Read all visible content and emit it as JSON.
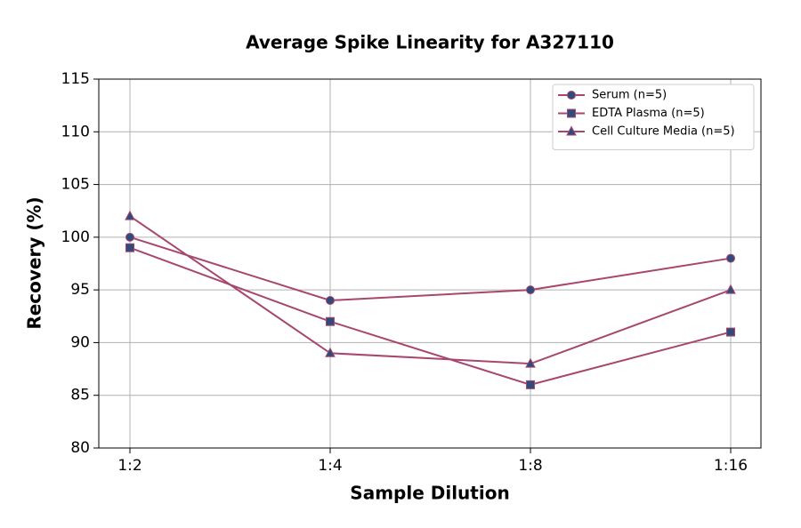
{
  "chart_data": {
    "type": "line",
    "title": "Average Spike Linearity for A327110",
    "x_label": "Sample Dilution",
    "y_label": "Recovery (%)",
    "categories": [
      "1:2",
      "1:4",
      "1:8",
      "1:16"
    ],
    "series": [
      {
        "name": "Serum (n=5)",
        "color": "#a8466e",
        "marker": "circle",
        "marker_color": "#2f4b7c",
        "values": [
          100,
          94,
          95,
          98
        ]
      },
      {
        "name": "EDTA Plasma (n=5)",
        "color": "#a8466e",
        "marker": "square",
        "marker_color": "#2f4b7c",
        "values": [
          99,
          92,
          86,
          91
        ]
      },
      {
        "name": "Cell Culture Media (n=5)",
        "color": "#a8466e",
        "marker": "triangle",
        "marker_color": "#2f4b7c",
        "values": [
          102,
          89,
          88,
          95
        ]
      }
    ],
    "ylim": [
      80,
      115
    ],
    "yticks": [
      80,
      85,
      90,
      95,
      100,
      105,
      110,
      115
    ],
    "grid": true,
    "legend": "upper right"
  }
}
